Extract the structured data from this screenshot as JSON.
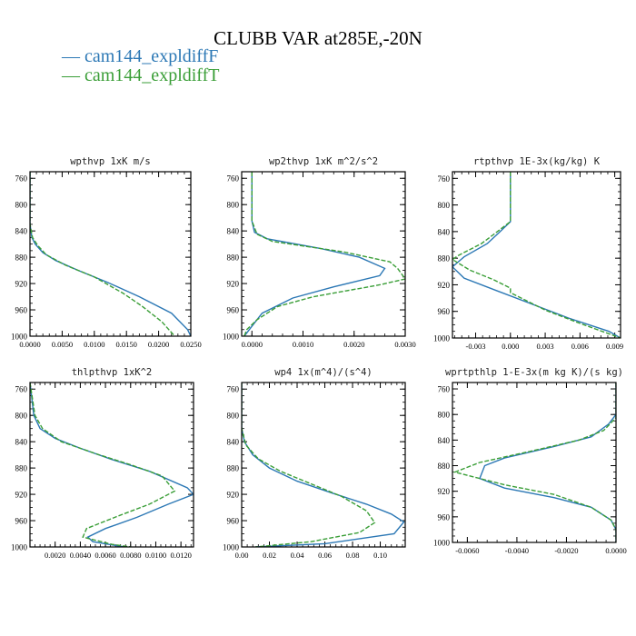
{
  "title": "CLUBB VAR at285E,-20N",
  "legend": [
    {
      "label": "cam144_expldiffF",
      "color": "#2c78b5",
      "dash": ""
    },
    {
      "label": "cam144_expldiffT",
      "color": "#3a9e37",
      "dash": "5,2"
    }
  ],
  "chart_data": [
    {
      "type": "line",
      "title": "wpthvp  1xK m/s",
      "y_ticks": [
        760,
        800,
        840,
        880,
        920,
        960,
        1000
      ],
      "ylim": [
        1000,
        750
      ],
      "xlim": [
        0,
        0.025
      ],
      "x_ticks": [
        0,
        0.005,
        0.01,
        0.015,
        0.02,
        0.025
      ],
      "x_tick_labels": [
        "0.0000",
        "0.0050",
        "0.0100",
        "0.0150",
        "0.0200",
        "0.0250"
      ],
      "series": [
        {
          "name": "cam144_expldiffF",
          "points": [
            [
              0,
              750
            ],
            [
              0,
              800
            ],
            [
              0,
              830
            ],
            [
              0.0003,
              850
            ],
            [
              0.0008,
              860
            ],
            [
              0.002,
              873
            ],
            [
              0.004,
              885
            ],
            [
              0.0075,
              900
            ],
            [
              0.012,
              918
            ],
            [
              0.017,
              940
            ],
            [
              0.022,
              965
            ],
            [
              0.0245,
              990
            ],
            [
              0.025,
              1000
            ]
          ]
        },
        {
          "name": "cam144_expldiffT",
          "points": [
            [
              0,
              750
            ],
            [
              0,
              800
            ],
            [
              0,
              830
            ],
            [
              0.0004,
              850
            ],
            [
              0.0012,
              862
            ],
            [
              0.0025,
              876
            ],
            [
              0.0055,
              892
            ],
            [
              0.01,
              910
            ],
            [
              0.0145,
              935
            ],
            [
              0.0175,
              955
            ],
            [
              0.0205,
              978
            ],
            [
              0.0225,
              1000
            ]
          ]
        }
      ]
    },
    {
      "type": "line",
      "title": "wp2thvp  1xK m^2/s^2",
      "y_ticks": [
        760,
        800,
        840,
        880,
        920,
        960,
        1000
      ],
      "ylim": [
        1000,
        750
      ],
      "xlim": [
        -0.0002,
        0.003
      ],
      "x_ticks": [
        0,
        0.001,
        0.002,
        0.003
      ],
      "x_tick_labels": [
        "0.0000",
        "0.0010",
        "0.0020",
        "0.0030"
      ],
      "series": [
        {
          "name": "cam144_expldiffF",
          "points": [
            [
              0,
              750
            ],
            [
              0,
              825
            ],
            [
              5e-05,
              842
            ],
            [
              0.0003,
              852
            ],
            [
              0.0013,
              866
            ],
            [
              0.0021,
              880
            ],
            [
              0.0026,
              897
            ],
            [
              0.0025,
              908
            ],
            [
              0.0016,
              925
            ],
            [
              0.0008,
              942
            ],
            [
              0.0002,
              965
            ],
            [
              0,
              985
            ],
            [
              -0.0001,
              995
            ],
            [
              -0.00015,
              1000
            ]
          ]
        },
        {
          "name": "cam144_expldiffT",
          "points": [
            [
              0,
              750
            ],
            [
              0,
              825
            ],
            [
              0.0001,
              845
            ],
            [
              0.0004,
              856
            ],
            [
              0.0018,
              872
            ],
            [
              0.0027,
              887
            ],
            [
              0.00285,
              897
            ],
            [
              0.003,
              913
            ],
            [
              0.0025,
              922
            ],
            [
              0.0012,
              940
            ],
            [
              0.0005,
              955
            ],
            [
              0.0001,
              975
            ],
            [
              -0.0001,
              990
            ],
            [
              -0.00015,
              1000
            ]
          ]
        }
      ]
    },
    {
      "type": "line",
      "title": "rtpthvp  1E-3x(kg/kg) K",
      "y_ticks": [
        760,
        800,
        840,
        880,
        920,
        960,
        1000
      ],
      "ylim": [
        1000,
        750
      ],
      "xlim": [
        -0.005,
        0.0095
      ],
      "x_ticks": [
        -0.003,
        0,
        0.003,
        0.006,
        0.009
      ],
      "x_tick_labels": [
        "-0.003",
        "0.000",
        "0.003",
        "0.006",
        "0.009"
      ],
      "series": [
        {
          "name": "cam144_expldiffF",
          "points": [
            [
              0,
              750
            ],
            [
              0,
              825
            ],
            [
              -0.001,
              842
            ],
            [
              -0.002,
              858
            ],
            [
              -0.004,
              878
            ],
            [
              -0.005,
              893
            ],
            [
              -0.004,
              910
            ],
            [
              -0.001,
              930
            ],
            [
              0.002,
              950
            ],
            [
              0.005,
              970
            ],
            [
              0.0085,
              990
            ],
            [
              0.0095,
              1000
            ]
          ]
        },
        {
          "name": "cam144_expldiffT",
          "points": [
            [
              0,
              750
            ],
            [
              0,
              825
            ],
            [
              -0.0015,
              845
            ],
            [
              -0.0025,
              858
            ],
            [
              -0.0045,
              876
            ],
            [
              -0.005,
              882
            ],
            [
              -0.0035,
              898
            ],
            [
              -0.0015,
              912
            ],
            [
              0,
              925
            ],
            [
              0,
              932
            ],
            [
              0.003,
              958
            ],
            [
              0.006,
              978
            ],
            [
              0.0095,
              1000
            ]
          ]
        }
      ]
    },
    {
      "type": "line",
      "title": "thlpthvp  1xK^2",
      "y_ticks": [
        760,
        800,
        840,
        880,
        920,
        960,
        1000
      ],
      "ylim": [
        1000,
        750
      ],
      "xlim": [
        0,
        0.013
      ],
      "x_ticks": [
        0.002,
        0.004,
        0.006,
        0.008,
        0.01,
        0.012
      ],
      "x_tick_labels": [
        "0.0020",
        "0.0040",
        "0.0060",
        "0.0080",
        "0.0100",
        "0.0120"
      ],
      "series": [
        {
          "name": "cam144_expldiffF",
          "points": [
            [
              0,
              750
            ],
            [
              0.0003,
              800
            ],
            [
              0.0008,
              820
            ],
            [
              0.002,
              835
            ],
            [
              0.004,
              850
            ],
            [
              0.0065,
              867
            ],
            [
              0.0095,
              885
            ],
            [
              0.0125,
              910
            ],
            [
              0.013,
              920
            ],
            [
              0.011,
              935
            ],
            [
              0.0085,
              955
            ],
            [
              0.006,
              972
            ],
            [
              0.0046,
              985
            ],
            [
              0.005,
              992
            ],
            [
              0.0075,
              1000
            ]
          ]
        },
        {
          "name": "cam144_expldiffT",
          "points": [
            [
              0,
              750
            ],
            [
              0.0004,
              800
            ],
            [
              0.001,
              820
            ],
            [
              0.0025,
              840
            ],
            [
              0.0055,
              860
            ],
            [
              0.008,
              875
            ],
            [
              0.0105,
              892
            ],
            [
              0.0115,
              915
            ],
            [
              0.0095,
              935
            ],
            [
              0.007,
              953
            ],
            [
              0.0045,
              972
            ],
            [
              0.0042,
              985
            ],
            [
              0.0065,
              996
            ],
            [
              0.008,
              1000
            ]
          ]
        }
      ]
    },
    {
      "type": "line",
      "title": "wp4  1x(m^4)/(s^4)",
      "y_ticks": [
        760,
        800,
        840,
        880,
        920,
        960,
        1000
      ],
      "ylim": [
        1000,
        750
      ],
      "xlim": [
        0,
        0.118
      ],
      "x_ticks": [
        0,
        0.02,
        0.04,
        0.06,
        0.08,
        0.1
      ],
      "x_tick_labels": [
        "0.00",
        "0.02",
        "0.04",
        "0.06",
        "0.08",
        "0.10"
      ],
      "series": [
        {
          "name": "cam144_expldiffF",
          "points": [
            [
              0,
              750
            ],
            [
              0,
              820
            ],
            [
              0.002,
              840
            ],
            [
              0.008,
              860
            ],
            [
              0.02,
              880
            ],
            [
              0.04,
              900
            ],
            [
              0.065,
              918
            ],
            [
              0.09,
              935
            ],
            [
              0.108,
              950
            ],
            [
              0.117,
              962
            ],
            [
              0.11,
              980
            ],
            [
              0.06,
              995
            ],
            [
              0.01,
              1000
            ]
          ]
        },
        {
          "name": "cam144_expldiffT",
          "points": [
            [
              0,
              750
            ],
            [
              0,
              820
            ],
            [
              0.003,
              845
            ],
            [
              0.012,
              866
            ],
            [
              0.028,
              885
            ],
            [
              0.05,
              904
            ],
            [
              0.072,
              923
            ],
            [
              0.09,
              945
            ],
            [
              0.096,
              963
            ],
            [
              0.085,
              978
            ],
            [
              0.05,
              992
            ],
            [
              0.01,
              1000
            ]
          ]
        }
      ]
    },
    {
      "type": "line",
      "title": "wprtpthlp  1-E-3x(m kg K)/(s kg)",
      "y_ticks": [
        760,
        800,
        840,
        880,
        920,
        960,
        1000
      ],
      "ylim": [
        1000,
        750
      ],
      "xlim": [
        -0.0066,
        0
      ],
      "x_ticks": [
        -0.006,
        -0.004,
        -0.002,
        0
      ],
      "x_tick_labels": [
        "-0.0060",
        "-0.0040",
        "-0.0020",
        "0.0000"
      ],
      "series": [
        {
          "name": "cam144_expldiffF",
          "points": [
            [
              0,
              750
            ],
            [
              0,
              800
            ],
            [
              -0.0003,
              815
            ],
            [
              -0.001,
              835
            ],
            [
              -0.0025,
              850
            ],
            [
              -0.0045,
              868
            ],
            [
              -0.0053,
              880
            ],
            [
              -0.0055,
              900
            ],
            [
              -0.0045,
              915
            ],
            [
              -0.0025,
              930
            ],
            [
              -0.001,
              945
            ],
            [
              -0.0002,
              965
            ],
            [
              0,
              980
            ],
            [
              0,
              1000
            ]
          ]
        },
        {
          "name": "cam144_expldiffT",
          "points": [
            [
              0,
              750
            ],
            [
              0,
              805
            ],
            [
              -0.0005,
              825
            ],
            [
              -0.0015,
              840
            ],
            [
              -0.0035,
              858
            ],
            [
              -0.0055,
              875
            ],
            [
              -0.0065,
              890
            ],
            [
              -0.0045,
              910
            ],
            [
              -0.0025,
              925
            ],
            [
              -0.001,
              945
            ],
            [
              -0.0002,
              965
            ],
            [
              0,
              980
            ],
            [
              0,
              1000
            ]
          ]
        }
      ]
    }
  ]
}
